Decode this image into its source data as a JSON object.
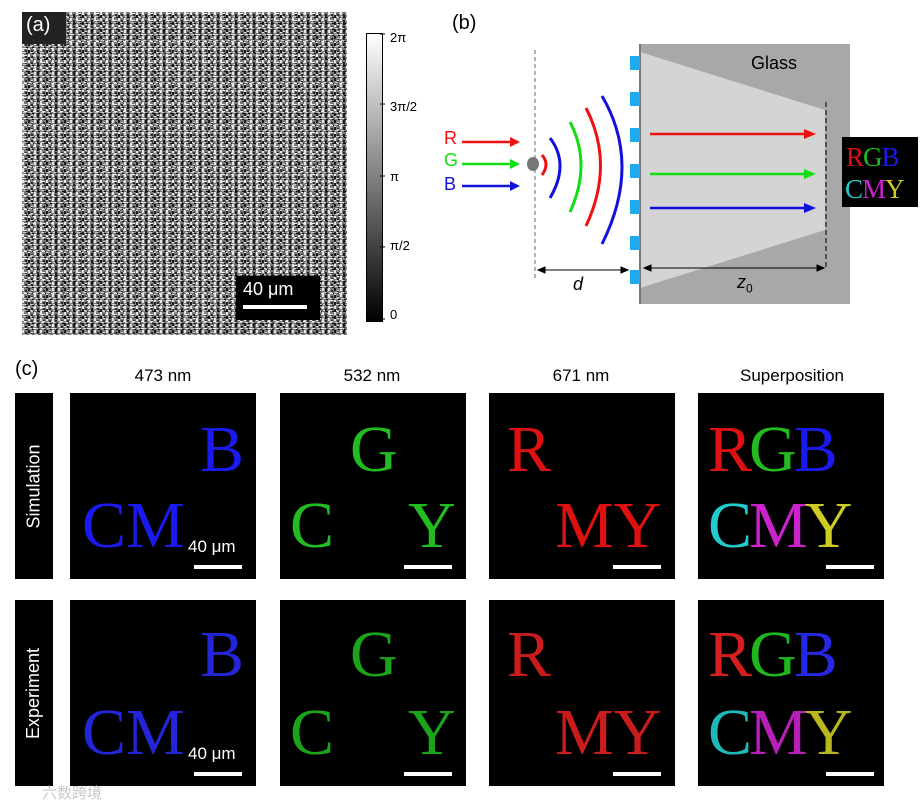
{
  "panel_a": {
    "label": "(a)",
    "scalebar": "40 μm",
    "colorbar_ticks": [
      "2π",
      "3π/2",
      "π",
      "π/2",
      "0"
    ]
  },
  "panel_b": {
    "label": "(b)",
    "glass_label": "Glass",
    "inputs": [
      {
        "letter": "R",
        "color": "#ee1111"
      },
      {
        "letter": "G",
        "color": "#11dd11"
      },
      {
        "letter": "B",
        "color": "#1111dd"
      }
    ],
    "distance_d": "d",
    "distance_z": "z",
    "distance_z_sub": "0",
    "image_top": [
      "R",
      "G",
      "B"
    ],
    "image_bottom": [
      "C",
      "M",
      "Y"
    ]
  },
  "panel_c": {
    "label": "(c)",
    "columns": [
      "473 nm",
      "532 nm",
      "671 nm",
      "Superposition"
    ],
    "rows": [
      "Simulation",
      "Experiment"
    ],
    "scalebar": "40 μm"
  },
  "colors": {
    "red": "#dd1111",
    "green": "#22bb22",
    "blue": "#1a1aee",
    "cyan": "#22cccc",
    "magenta": "#cc22cc",
    "yellow": "#cccc22",
    "metasurface": "#22aaee"
  },
  "watermark": "六数跨境"
}
